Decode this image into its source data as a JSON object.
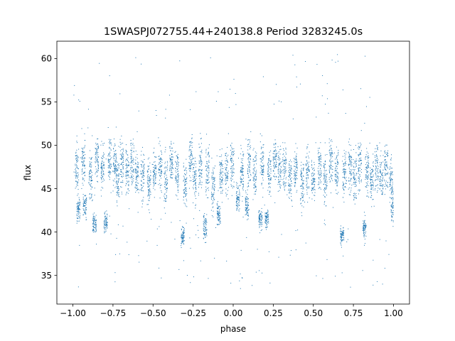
{
  "chart_data": {
    "type": "scatter",
    "title": "1SWASPJ072755.44+240138.8 Period 3283245.0s",
    "xlabel": "phase",
    "ylabel": "flux",
    "xlim": [
      -1.1,
      1.1
    ],
    "ylim": [
      31.7,
      62.0
    ],
    "xticks": [
      -1.0,
      -0.75,
      -0.5,
      -0.25,
      0.0,
      0.25,
      0.5,
      0.75,
      1.0
    ],
    "xtick_labels": [
      "−1.00",
      "−0.75",
      "−0.50",
      "−0.25",
      "0.00",
      "0.25",
      "0.50",
      "0.75",
      "1.00"
    ],
    "yticks": [
      35,
      40,
      45,
      50,
      55,
      60
    ],
    "ytick_labels": [
      "35",
      "40",
      "45",
      "50",
      "55",
      "60"
    ],
    "grid": false,
    "legend": "none",
    "marker_color": "#1f77b4",
    "series": [
      {
        "x_range": [
          -1.0,
          1.0
        ],
        "clusters": [
          {
            "x": -0.975,
            "y_center": 47.2,
            "y_spread": 2.6
          },
          {
            "x": -0.965,
            "y_center": 42.5,
            "y_spread": 1.2
          },
          {
            "x": -0.935,
            "y_center": 48.0,
            "y_spread": 2.4
          },
          {
            "x": -0.925,
            "y_center": 43.0,
            "y_spread": 1.2
          },
          {
            "x": -0.89,
            "y_center": 46.5,
            "y_spread": 2.8
          },
          {
            "x": -0.865,
            "y_center": 41.0,
            "y_spread": 1.0
          },
          {
            "x": -0.85,
            "y_center": 48.5,
            "y_spread": 2.0
          },
          {
            "x": -0.815,
            "y_center": 47.5,
            "y_spread": 2.2
          },
          {
            "x": -0.795,
            "y_center": 41.2,
            "y_spread": 1.0
          },
          {
            "x": -0.77,
            "y_center": 48.5,
            "y_spread": 2.2
          },
          {
            "x": -0.74,
            "y_center": 48.0,
            "y_spread": 2.4
          },
          {
            "x": -0.72,
            "y_center": 45.5,
            "y_spread": 2.6
          },
          {
            "x": -0.695,
            "y_center": 48.0,
            "y_spread": 2.6
          },
          {
            "x": -0.66,
            "y_center": 47.0,
            "y_spread": 2.4
          },
          {
            "x": -0.63,
            "y_center": 48.0,
            "y_spread": 2.4
          },
          {
            "x": -0.6,
            "y_center": 46.5,
            "y_spread": 2.4
          },
          {
            "x": -0.565,
            "y_center": 46.5,
            "y_spread": 2.6
          },
          {
            "x": -0.525,
            "y_center": 45.5,
            "y_spread": 2.4
          },
          {
            "x": -0.49,
            "y_center": 47.0,
            "y_spread": 2.4
          },
          {
            "x": -0.455,
            "y_center": 47.5,
            "y_spread": 2.2
          },
          {
            "x": -0.42,
            "y_center": 46.0,
            "y_spread": 2.4
          },
          {
            "x": -0.385,
            "y_center": 48.0,
            "y_spread": 2.2
          },
          {
            "x": -0.35,
            "y_center": 47.0,
            "y_spread": 2.4
          },
          {
            "x": -0.315,
            "y_center": 39.5,
            "y_spread": 1.0
          },
          {
            "x": -0.3,
            "y_center": 45.5,
            "y_spread": 2.4
          },
          {
            "x": -0.265,
            "y_center": 48.5,
            "y_spread": 2.4
          },
          {
            "x": -0.24,
            "y_center": 46.0,
            "y_spread": 2.6
          },
          {
            "x": -0.205,
            "y_center": 47.5,
            "y_spread": 2.6
          },
          {
            "x": -0.175,
            "y_center": 40.5,
            "y_spread": 1.4
          },
          {
            "x": -0.16,
            "y_center": 47.0,
            "y_spread": 2.6
          },
          {
            "x": -0.125,
            "y_center": 45.5,
            "y_spread": 2.6
          },
          {
            "x": -0.09,
            "y_center": 42.0,
            "y_spread": 1.4
          },
          {
            "x": -0.075,
            "y_center": 46.5,
            "y_spread": 2.4
          },
          {
            "x": -0.04,
            "y_center": 47.0,
            "y_spread": 2.4
          },
          {
            "x": -0.005,
            "y_center": 47.5,
            "y_spread": 2.4
          },
          {
            "x": 0.03,
            "y_center": 44.0,
            "y_spread": 1.6
          },
          {
            "x": 0.055,
            "y_center": 47.0,
            "y_spread": 2.4
          },
          {
            "x": 0.085,
            "y_center": 43.0,
            "y_spread": 1.2
          },
          {
            "x": 0.1,
            "y_center": 48.0,
            "y_spread": 2.4
          },
          {
            "x": 0.135,
            "y_center": 47.0,
            "y_spread": 2.4
          },
          {
            "x": 0.17,
            "y_center": 41.5,
            "y_spread": 1.0
          },
          {
            "x": 0.18,
            "y_center": 47.5,
            "y_spread": 2.4
          },
          {
            "x": 0.21,
            "y_center": 41.5,
            "y_spread": 1.0
          },
          {
            "x": 0.225,
            "y_center": 47.0,
            "y_spread": 2.4
          },
          {
            "x": 0.26,
            "y_center": 48.5,
            "y_spread": 2.2
          },
          {
            "x": 0.29,
            "y_center": 47.0,
            "y_spread": 2.6
          },
          {
            "x": 0.32,
            "y_center": 47.5,
            "y_spread": 2.4
          },
          {
            "x": 0.355,
            "y_center": 46.0,
            "y_spread": 2.4
          },
          {
            "x": 0.39,
            "y_center": 47.5,
            "y_spread": 2.4
          },
          {
            "x": 0.43,
            "y_center": 45.5,
            "y_spread": 2.4
          },
          {
            "x": 0.465,
            "y_center": 47.0,
            "y_spread": 2.4
          },
          {
            "x": 0.5,
            "y_center": 46.0,
            "y_spread": 2.2
          },
          {
            "x": 0.54,
            "y_center": 47.5,
            "y_spread": 2.4
          },
          {
            "x": 0.575,
            "y_center": 46.0,
            "y_spread": 2.4
          },
          {
            "x": 0.61,
            "y_center": 48.0,
            "y_spread": 2.4
          },
          {
            "x": 0.645,
            "y_center": 47.0,
            "y_spread": 2.2
          },
          {
            "x": 0.68,
            "y_center": 39.5,
            "y_spread": 1.0
          },
          {
            "x": 0.695,
            "y_center": 46.5,
            "y_spread": 2.4
          },
          {
            "x": 0.73,
            "y_center": 47.5,
            "y_spread": 2.6
          },
          {
            "x": 0.76,
            "y_center": 46.0,
            "y_spread": 2.4
          },
          {
            "x": 0.79,
            "y_center": 48.0,
            "y_spread": 2.6
          },
          {
            "x": 0.82,
            "y_center": 40.5,
            "y_spread": 1.2
          },
          {
            "x": 0.835,
            "y_center": 47.0,
            "y_spread": 2.4
          },
          {
            "x": 0.865,
            "y_center": 46.0,
            "y_spread": 2.4
          },
          {
            "x": 0.895,
            "y_center": 47.5,
            "y_spread": 2.4
          },
          {
            "x": 0.925,
            "y_center": 46.5,
            "y_spread": 2.4
          },
          {
            "x": 0.955,
            "y_center": 47.5,
            "y_spread": 2.4
          },
          {
            "x": 0.985,
            "y_center": 46.0,
            "y_spread": 2.6
          },
          {
            "x": 0.995,
            "y_center": 43.0,
            "y_spread": 1.4
          }
        ],
        "outlier_y_range": [
          33.2,
          60.7
        ]
      }
    ]
  }
}
